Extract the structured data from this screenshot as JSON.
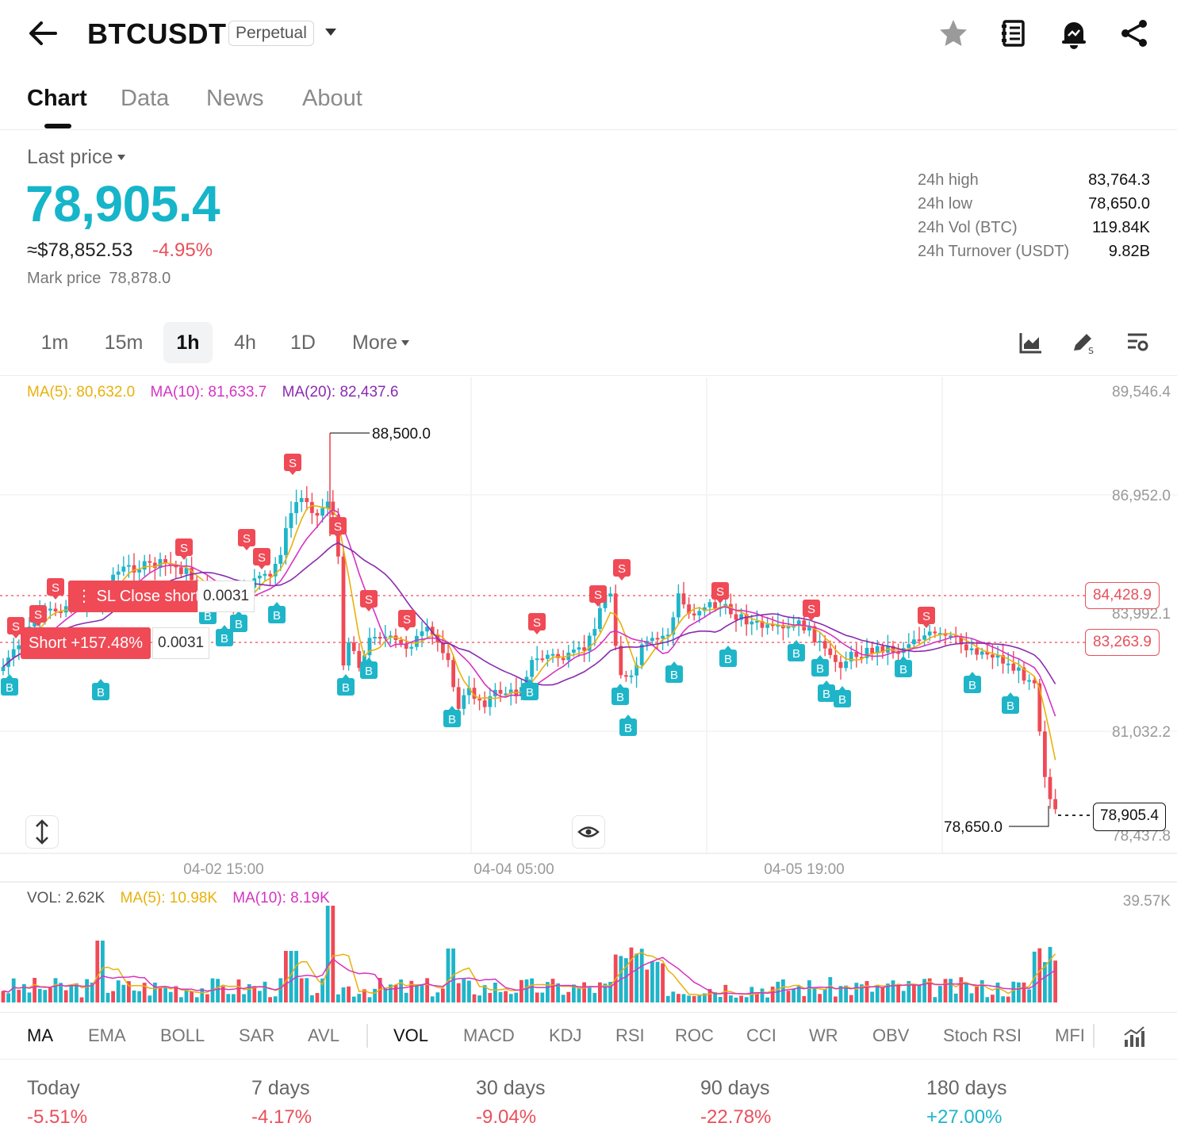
{
  "header": {
    "symbol": "BTCUSDT",
    "badge": "Perpetual",
    "icons": [
      "back-arrow-icon",
      "star-icon",
      "notebook-icon",
      "bell-icon",
      "share-icon"
    ]
  },
  "tabs": [
    {
      "label": "Chart",
      "active": true
    },
    {
      "label": "Data",
      "active": false
    },
    {
      "label": "News",
      "active": false
    },
    {
      "label": "About",
      "active": false
    }
  ],
  "price": {
    "label": "Last price",
    "last": "78,905.4",
    "approx": "≈$78,852.53",
    "change": "-4.95%",
    "mark_label": "Mark price",
    "mark_value": "78,878.0"
  },
  "stats": [
    {
      "label": "24h high",
      "value": "83,764.3"
    },
    {
      "label": "24h low",
      "value": "78,650.0"
    },
    {
      "label": "24h Vol (BTC)",
      "value": "119.84K"
    },
    {
      "label": "24h Turnover (USDT)",
      "value": "9.82B"
    }
  ],
  "timeframes": [
    {
      "label": "1m",
      "active": false
    },
    {
      "label": "15m",
      "active": false
    },
    {
      "label": "1h",
      "active": true
    },
    {
      "label": "4h",
      "active": false
    },
    {
      "label": "1D",
      "active": false
    },
    {
      "label": "More",
      "active": false
    }
  ],
  "ma_legend": {
    "ma5": "MA(5): 80,632.0",
    "ma10": "MA(10): 81,633.7",
    "ma20": "MA(20): 82,437.6"
  },
  "axis": {
    "y_labels": [
      "89,546.4",
      "86,952.0",
      "83,992.1",
      "81,032.2",
      "78,437.8"
    ],
    "x_labels": [
      "04-02 15:00",
      "04-04 05:00",
      "04-05 19:00"
    ],
    "vol_max": "39.57K"
  },
  "annotations": {
    "high_label": "88,500.0",
    "low_label": "78,650.0",
    "tag_sl": "84,428.9",
    "tag_entry": "83,263.9",
    "current": "78,905.4"
  },
  "positions": {
    "sl_label": "SL Close short",
    "sl_qty": "0.0031",
    "short_label": "Short +157.48%",
    "short_qty": "0.0031"
  },
  "vol_legend": {
    "vol": "VOL: 2.62K",
    "ma5": "MA(5): 10.98K",
    "ma10": "MA(10): 8.19K"
  },
  "indicators": [
    "MA",
    "EMA",
    "BOLL",
    "SAR",
    "AVL",
    "VOL",
    "MACD",
    "KDJ",
    "RSI",
    "ROC",
    "CCI",
    "WR",
    "OBV",
    "Stoch RSI",
    "MFI"
  ],
  "performance": [
    {
      "label": "Today",
      "value": "-5.51%",
      "dir": "down"
    },
    {
      "label": "7 days",
      "value": "-4.17%",
      "dir": "down"
    },
    {
      "label": "30 days",
      "value": "-9.04%",
      "dir": "down"
    },
    {
      "label": "90 days",
      "value": "-22.78%",
      "dir": "down"
    },
    {
      "label": "180 days",
      "value": "+27.00%",
      "dir": "up"
    }
  ],
  "colors": {
    "up": "#1fb5c9",
    "down": "#ef4a56",
    "ma5": "#e8b10c",
    "ma10": "#d633c2",
    "ma20": "#8a2bb0"
  }
}
